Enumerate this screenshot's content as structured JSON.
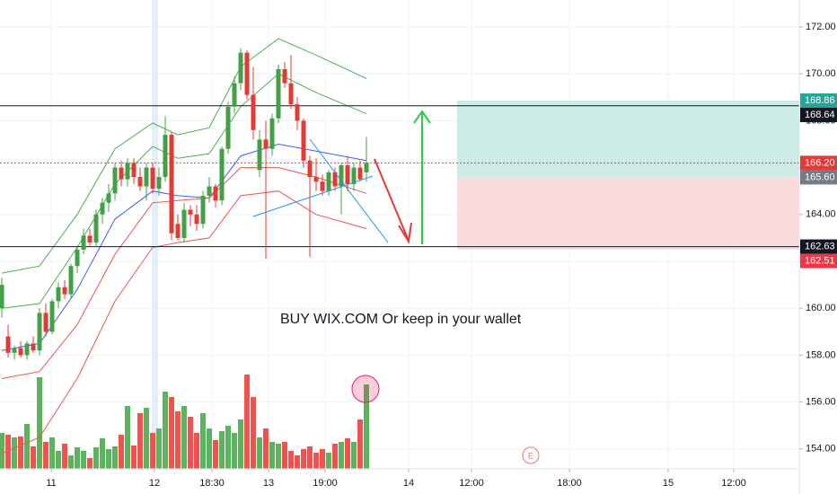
{
  "chart_data": {
    "type": "candlestick",
    "annotation": "BUY WIX.COM Or keep in your wallet",
    "event_marker": {
      "label": "E",
      "x": 84.14
    },
    "x": [
      0,
      1,
      2,
      3,
      4,
      5,
      6,
      7,
      8,
      9,
      10,
      11,
      12,
      13,
      14,
      15,
      16,
      17,
      18,
      19,
      20,
      21,
      22,
      23,
      24,
      25,
      26,
      27,
      28,
      29,
      30,
      31,
      32,
      33,
      34,
      35,
      36,
      37,
      38,
      39,
      40,
      41,
      42,
      43,
      44,
      45,
      46,
      47,
      48,
      49,
      50,
      51,
      52,
      53,
      54,
      55,
      56,
      57,
      58
    ],
    "open": [
      160.0,
      158.8,
      158.1,
      158.3,
      158.0,
      158.5,
      158.2,
      159.8,
      159.0,
      160.3,
      160.9,
      160.6,
      161.8,
      162.5,
      163.1,
      162.8,
      164.0,
      164.5,
      164.9,
      166.0,
      165.5,
      166.2,
      165.6,
      165.2,
      166.0,
      165.1,
      165.6,
      167.4,
      163.6,
      163.0,
      164.2,
      164.0,
      163.6,
      164.8,
      165.2,
      164.6,
      166.8,
      168.6,
      169.6,
      170.9,
      169.1,
      165.9,
      167.2,
      166.8,
      168.1,
      170.2,
      169.6,
      168.7,
      168.0,
      166.3,
      165.6,
      165.4,
      165.0,
      165.8,
      165.2,
      166.1,
      165.3,
      166.0,
      165.8
    ],
    "high": [
      161.3,
      159.3,
      158.4,
      158.6,
      158.6,
      158.8,
      160.0,
      160.2,
      160.4,
      161.1,
      161.2,
      161.9,
      162.6,
      163.4,
      163.4,
      164.2,
      164.7,
      165.3,
      166.2,
      166.3,
      166.4,
      166.4,
      166.0,
      166.2,
      166.2,
      166.0,
      168.2,
      167.5,
      164.0,
      164.5,
      164.4,
      164.4,
      165.0,
      165.6,
      165.3,
      166.9,
      168.8,
      169.9,
      171.1,
      171.0,
      170.3,
      167.6,
      168.0,
      168.3,
      170.4,
      170.5,
      170.8,
      169.0,
      168.1,
      166.5,
      166.4,
      165.7,
      165.9,
      166.0,
      166.2,
      166.5,
      166.2,
      166.3,
      167.3
    ],
    "low": [
      159.6,
      157.9,
      157.8,
      157.9,
      157.8,
      158.1,
      158.0,
      158.8,
      158.9,
      160.0,
      160.4,
      160.4,
      161.5,
      162.3,
      162.6,
      162.6,
      163.6,
      164.1,
      164.6,
      165.2,
      165.2,
      165.3,
      165.0,
      164.6,
      164.9,
      164.8,
      165.4,
      162.9,
      162.9,
      162.8,
      163.5,
      163.3,
      163.4,
      164.5,
      164.3,
      164.4,
      166.6,
      168.3,
      169.3,
      168.9,
      167.2,
      165.6,
      162.1,
      166.5,
      167.9,
      169.4,
      168.5,
      167.6,
      166.0,
      162.2,
      165.0,
      164.8,
      164.8,
      165.0,
      164.0,
      165.0,
      165.0,
      165.4,
      165.4
    ],
    "close": [
      161.0,
      158.1,
      158.3,
      158.0,
      158.5,
      158.2,
      159.8,
      159.0,
      160.3,
      160.9,
      160.6,
      161.8,
      162.5,
      163.1,
      162.8,
      164.0,
      164.5,
      164.9,
      166.0,
      165.5,
      166.2,
      165.6,
      165.2,
      166.0,
      165.1,
      165.6,
      167.4,
      163.2,
      163.0,
      164.2,
      164.0,
      163.6,
      164.8,
      165.2,
      164.6,
      166.8,
      168.6,
      169.6,
      170.9,
      169.1,
      167.6,
      167.2,
      166.8,
      168.1,
      170.2,
      169.6,
      168.7,
      168.0,
      166.3,
      165.6,
      165.4,
      165.0,
      165.8,
      165.2,
      166.1,
      165.3,
      166.0,
      165.5,
      166.2
    ],
    "up_color": "#43a047",
    "down_color": "#e53935",
    "volume": [
      40,
      38,
      35,
      36,
      50,
      25,
      102,
      30,
      35,
      20,
      28,
      15,
      24,
      20,
      12,
      24,
      34,
      22,
      25,
      38,
      70,
      26,
      62,
      68,
      40,
      45,
      86,
      80,
      64,
      70,
      58,
      40,
      62,
      45,
      32,
      42,
      48,
      40,
      55,
      105,
      80,
      35,
      45,
      30,
      28,
      30,
      20,
      15,
      22,
      25,
      18,
      22,
      18,
      28,
      30,
      34,
      30,
      55,
      94
    ],
    "volume_up_color": "#5cb35f",
    "volume_down_color": "#f0524f",
    "y2lim": [
      0,
      522
    ],
    "indicators": [
      {
        "color": "#4caf50",
        "x": [
          0,
          6,
          12,
          18,
          24,
          28,
          33,
          38,
          44,
          50,
          58
        ],
        "values": [
          161.5,
          161.8,
          164.0,
          166.8,
          167.9,
          167.4,
          167.7,
          170.3,
          171.5,
          170.8,
          169.8
        ]
      },
      {
        "color": "#4caf50",
        "x": [
          0,
          6,
          12,
          18,
          24,
          28,
          33,
          38,
          44,
          50,
          58
        ],
        "values": [
          160.0,
          160.2,
          162.6,
          165.3,
          166.9,
          166.4,
          166.6,
          168.6,
          170.0,
          169.2,
          168.3
        ]
      },
      {
        "color": "#3d5afe",
        "x": [
          0,
          6,
          12,
          18,
          24,
          28,
          33,
          38,
          44,
          50,
          58
        ],
        "values": [
          158.2,
          158.5,
          160.8,
          163.8,
          165.0,
          164.8,
          164.7,
          166.5,
          167.0,
          166.7,
          166.3
        ]
      },
      {
        "color": "#ef5350",
        "x": [
          0,
          6,
          12,
          18,
          24,
          28,
          33,
          38,
          44,
          50,
          58
        ],
        "values": [
          157.0,
          157.3,
          159.3,
          162.3,
          164.5,
          164.6,
          164.7,
          166.0,
          166.0,
          165.6,
          164.9
        ]
      },
      {
        "color": "#ef5350",
        "x": [
          0,
          6,
          12,
          18,
          24,
          28,
          33,
          38,
          44,
          50,
          58
        ],
        "values": [
          153.8,
          154.5,
          157.0,
          160.3,
          162.6,
          162.8,
          163.0,
          164.8,
          165.0,
          164.0,
          163.4
        ]
      }
    ],
    "position": {
      "x_start": 72.43,
      "target": 168.86,
      "entry": 165.6,
      "stop": 162.51,
      "profit_color": "#cdece7",
      "loss_color": "#fbdcdc"
    },
    "price_labels": [
      {
        "value": 168.86,
        "label": "168.86",
        "color": "#26a69a"
      },
      {
        "value": 168.64,
        "label": "168.64",
        "color": "#131722",
        "line": "solid"
      },
      {
        "value": 166.2,
        "label": "166.20",
        "color": "#e53935",
        "line": "dotted"
      },
      {
        "value": 165.6,
        "label": "165.60",
        "color": "#787b86"
      },
      {
        "value": 162.63,
        "label": "162.63",
        "color": "#131722",
        "line": "solid"
      },
      {
        "value": 162.51,
        "label": "162.51",
        "color": "#f23645"
      }
    ],
    "xlim": [
      -0.29,
      126.86
    ],
    "ylim": [
      153.15,
      173.15
    ],
    "yticks": [
      {
        "value": 172,
        "label": "172.00"
      },
      {
        "value": 170,
        "label": "170.00"
      },
      {
        "value": 168,
        "label": "168.00"
      },
      {
        "value": 166,
        "label": "166.00"
      },
      {
        "value": 164,
        "label": "164.00"
      },
      {
        "value": 162,
        "label": "162.00"
      },
      {
        "value": 160,
        "label": "160.00"
      },
      {
        "value": 158,
        "label": "158.00"
      },
      {
        "value": 156,
        "label": "156.00"
      },
      {
        "value": 154,
        "label": "154.00"
      }
    ],
    "xticks": [
      {
        "value": 7.86,
        "label": "11"
      },
      {
        "value": 24.29,
        "label": "12"
      },
      {
        "value": 33.43,
        "label": "18:30"
      },
      {
        "value": 42.43,
        "label": "13"
      },
      {
        "value": 51.43,
        "label": "19:00"
      },
      {
        "value": 64.71,
        "label": "14"
      },
      {
        "value": 74.71,
        "label": "12:00"
      },
      {
        "value": 90.29,
        "label": "18:00"
      },
      {
        "value": 106,
        "label": "15"
      },
      {
        "value": 116.43,
        "label": "12:00"
      }
    ],
    "grid": true
  }
}
